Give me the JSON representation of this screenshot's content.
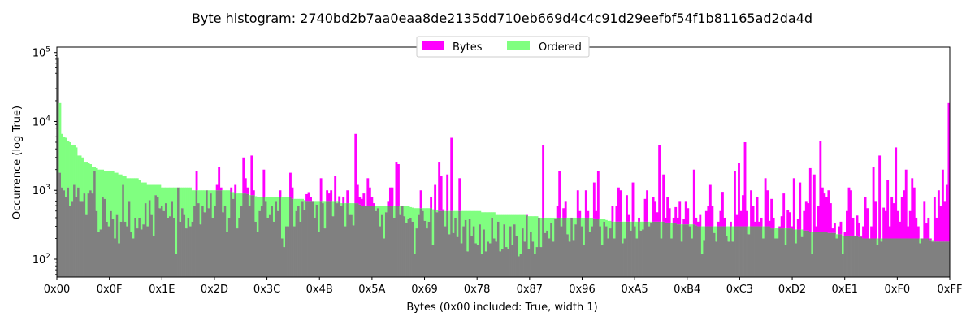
{
  "chart_data": {
    "type": "bar",
    "title": "Byte histogram: 2740bd2b7aa0eaa8de2135dd710eb669d4c4c91d29eefbf54f1b81165ad2da4d",
    "xlabel": "Bytes (0x00 included: True, width 1)",
    "ylabel": "Occurrence (log True)",
    "y_scale": "log",
    "ylim": [
      55,
      120000
    ],
    "xlim": [
      0,
      255
    ],
    "x_ticks": [
      "0x00",
      "0x0F",
      "0x1E",
      "0x2D",
      "0x3C",
      "0x4B",
      "0x5A",
      "0x69",
      "0x78",
      "0x87",
      "0x96",
      "0xA5",
      "0xB4",
      "0xC3",
      "0xD2",
      "0xE1",
      "0xF0",
      "0xFF"
    ],
    "y_ticks": [
      {
        "value": 100,
        "label": "10",
        "exp": "2"
      },
      {
        "value": 1000,
        "label": "10",
        "exp": "3"
      },
      {
        "value": 10000,
        "label": "10",
        "exp": "4"
      },
      {
        "value": 100000,
        "label": "10",
        "exp": "5"
      }
    ],
    "legend": {
      "placement": "top-center",
      "columns": 2
    },
    "grid": false,
    "colors": {
      "bytes": "#ff00ff",
      "ordered": "#80ff80",
      "overlap": "#808080"
    },
    "series": [
      {
        "name": "Bytes",
        "values": [
          85000,
          1800,
          1100,
          1000,
          800,
          1100,
          600,
          700,
          1200,
          800,
          1100,
          700,
          700,
          900,
          450,
          900,
          1000,
          900,
          1900,
          500,
          250,
          270,
          800,
          750,
          350,
          300,
          500,
          380,
          200,
          450,
          170,
          350,
          1200,
          350,
          300,
          700,
          250,
          200,
          400,
          280,
          400,
          270,
          320,
          650,
          300,
          720,
          450,
          220,
          850,
          800,
          550,
          600,
          500,
          650,
          400,
          420,
          700,
          400,
          120,
          1100,
          350,
          550,
          450,
          280,
          400,
          300,
          350,
          600,
          1900,
          650,
          320,
          600,
          480,
          1000,
          550,
          900,
          400,
          600,
          1200,
          2200,
          1100,
          480,
          600,
          250,
          400,
          1100,
          750,
          1200,
          280,
          400,
          600,
          3000,
          1500,
          1100,
          600,
          3200,
          1000,
          350,
          250,
          500,
          600,
          2000,
          700,
          400,
          450,
          600,
          350,
          700,
          500,
          1000,
          200,
          150,
          300,
          300,
          1800,
          1100,
          300,
          500,
          600,
          350,
          700,
          520,
          880,
          940,
          800,
          700,
          400,
          620,
          250,
          1500,
          650,
          280,
          1000,
          900,
          1000,
          420,
          1600,
          650,
          820,
          600,
          800,
          300,
          1000,
          450,
          450,
          310,
          6600,
          1200,
          800,
          750,
          900,
          600,
          1500,
          1100,
          800,
          650,
          500,
          550,
          300,
          450,
          200,
          480,
          700,
          1100,
          1100,
          400,
          2600,
          2400,
          450,
          600,
          420,
          340,
          380,
          400,
          350,
          120,
          280,
          450,
          1000,
          500,
          360,
          280,
          350,
          800,
          160,
          1200,
          480,
          2600,
          1600,
          530,
          300,
          1700,
          230,
          5800,
          240,
          400,
          210,
          1500,
          170,
          300,
          370,
          130,
          380,
          220,
          300,
          170,
          160,
          320,
          120,
          270,
          130,
          180,
          170,
          400,
          200,
          180,
          350,
          130,
          140,
          320,
          150,
          140,
          300,
          160,
          320,
          220,
          110,
          120,
          280,
          180,
          450,
          140,
          250,
          180,
          120,
          150,
          400,
          150,
          4500,
          240,
          260,
          200,
          340,
          180,
          390,
          600,
          1900,
          300,
          550,
          700,
          230,
          180,
          400,
          190,
          320,
          1000,
          500,
          300,
          160,
          1000,
          500,
          250,
          300,
          1300,
          500,
          1900,
          300,
          160,
          350,
          300,
          200,
          280,
          600,
          200,
          600,
          1100,
          1000,
          170,
          200,
          850,
          450,
          260,
          1300,
          300,
          200,
          400,
          260,
          270,
          750,
          1000,
          300,
          340,
          800,
          700,
          480,
          4500,
          200,
          1700,
          400,
          800,
          550,
          200,
          400,
          570,
          400,
          700,
          180,
          380,
          700,
          550,
          300,
          200,
          2000,
          400,
          350,
          450,
          120,
          190,
          500,
          600,
          1200,
          600,
          240,
          180,
          350,
          500,
          950,
          400,
          220,
          180,
          350,
          180,
          1900,
          450,
          2500,
          500,
          850,
          5000,
          500,
          230,
          1000,
          600,
          350,
          800,
          350,
          400,
          200,
          1500,
          1000,
          360,
          750,
          400,
          200,
          200,
          300,
          420,
          900,
          160,
          520,
          480,
          300,
          1500,
          170,
          380,
          1300,
          210,
          500,
          700,
          650,
          2100,
          120,
          1700,
          300,
          600,
          5200,
          1100,
          900,
          800,
          1000,
          650,
          280,
          330,
          200,
          300,
          350,
          120,
          250,
          500,
          1100,
          1000,
          400,
          220,
          430,
          340,
          220,
          300,
          800,
          550,
          200,
          300,
          2200,
          700,
          160,
          3200,
          180,
          560,
          500,
          1400,
          300,
          800,
          650,
          4200,
          500,
          350,
          800,
          1000,
          2000,
          300,
          500,
          1500,
          1100,
          400,
          300,
          170,
          200,
          700,
          330,
          400,
          200,
          180,
          800,
          400,
          1000,
          600,
          2000,
          700,
          1200,
          18500
        ]
      },
      {
        "name": "Ordered",
        "values": [
          85000,
          18500,
          6600,
          6000,
          5800,
          5200,
          5000,
          4500,
          4500,
          4200,
          3200,
          3200,
          3000,
          2600,
          2600,
          2500,
          2400,
          2200,
          2200,
          2100,
          2000,
          2000,
          2000,
          1900,
          1900,
          1900,
          1900,
          1900,
          1800,
          1800,
          1700,
          1700,
          1600,
          1600,
          1500,
          1500,
          1500,
          1500,
          1500,
          1500,
          1400,
          1300,
          1300,
          1300,
          1200,
          1200,
          1200,
          1200,
          1200,
          1200,
          1200,
          1100,
          1100,
          1100,
          1100,
          1100,
          1100,
          1100,
          1100,
          1100,
          1100,
          1100,
          1100,
          1100,
          1100,
          1100,
          1000,
          1000,
          1000,
          1000,
          1000,
          1000,
          1000,
          1000,
          1000,
          1000,
          1000,
          1000,
          1000,
          1000,
          1000,
          1000,
          1000,
          1000,
          1000,
          950,
          940,
          900,
          900,
          900,
          900,
          900,
          900,
          880,
          850,
          850,
          850,
          820,
          800,
          800,
          800,
          800,
          800,
          800,
          800,
          800,
          800,
          800,
          800,
          800,
          800,
          800,
          800,
          800,
          800,
          750,
          750,
          750,
          750,
          750,
          750,
          720,
          700,
          700,
          700,
          700,
          700,
          700,
          700,
          700,
          700,
          700,
          700,
          700,
          700,
          700,
          700,
          700,
          700,
          650,
          650,
          650,
          650,
          650,
          650,
          650,
          650,
          650,
          620,
          600,
          600,
          600,
          600,
          600,
          600,
          600,
          600,
          600,
          600,
          600,
          600,
          600,
          600,
          600,
          600,
          600,
          600,
          600,
          600,
          600,
          600,
          600,
          600,
          570,
          560,
          550,
          550,
          550,
          550,
          550,
          550,
          550,
          550,
          550,
          530,
          520,
          520,
          500,
          500,
          500,
          500,
          500,
          500,
          500,
          500,
          500,
          500,
          500,
          500,
          500,
          500,
          500,
          500,
          500,
          500,
          500,
          500,
          500,
          480,
          480,
          480,
          480,
          480,
          480,
          480,
          450,
          450,
          450,
          450,
          450,
          450,
          450,
          450,
          450,
          450,
          450,
          450,
          450,
          450,
          450,
          430,
          420,
          420,
          420,
          420,
          420,
          400,
          400,
          400,
          400,
          400,
          400,
          400,
          400,
          400,
          400,
          400,
          400,
          400,
          400,
          400,
          400,
          400,
          400,
          400,
          400,
          400,
          400,
          400,
          400,
          400,
          400,
          400,
          390,
          380,
          380,
          380,
          380,
          380,
          370,
          360,
          360,
          350,
          350,
          350,
          350,
          350,
          350,
          350,
          350,
          350,
          350,
          350,
          350,
          350,
          350,
          350,
          350,
          350,
          350,
          350,
          350,
          350,
          350,
          350,
          350,
          350,
          350,
          340,
          340,
          340,
          340,
          330,
          330,
          320,
          320,
          320,
          320,
          320,
          320,
          320,
          320,
          320,
          310,
          300,
          300,
          300,
          300,
          300,
          300,
          300,
          300,
          300,
          300,
          300,
          300,
          300,
          300,
          300,
          300,
          300,
          300,
          300,
          300,
          300,
          300,
          300,
          300,
          300,
          300,
          300,
          300,
          300,
          300,
          300,
          300,
          300,
          300,
          300,
          300,
          280,
          280,
          280,
          280,
          280,
          280,
          280,
          280,
          280,
          280,
          280,
          270,
          270,
          270,
          270,
          270,
          260,
          260,
          260,
          250,
          250,
          250,
          250,
          250,
          250,
          250,
          250,
          250,
          240,
          240,
          240,
          240,
          230,
          230,
          230,
          220,
          220,
          220,
          220,
          220,
          220,
          220,
          220,
          210,
          210,
          200,
          200,
          200,
          200,
          200,
          200,
          200,
          200,
          200,
          200,
          200,
          200,
          200,
          200,
          200,
          200,
          200,
          200,
          200,
          200,
          200,
          200,
          200,
          200,
          200,
          200,
          200,
          200,
          200,
          200,
          200,
          200,
          200,
          190,
          190,
          180,
          180,
          180,
          180,
          180,
          180,
          180,
          180,
          180,
          180,
          180,
          180,
          180,
          180,
          180,
          180,
          180,
          180,
          180,
          170,
          170,
          170,
          170,
          170,
          170,
          170,
          160,
          160,
          160,
          160,
          160,
          160,
          160,
          160,
          160,
          150,
          150,
          150,
          150,
          140,
          140,
          140,
          140,
          130,
          130,
          130,
          130,
          120,
          120,
          120,
          120,
          120,
          120,
          120,
          120,
          120,
          120,
          110,
          100,
          95,
          90,
          88,
          85,
          83,
          80
        ]
      }
    ]
  }
}
